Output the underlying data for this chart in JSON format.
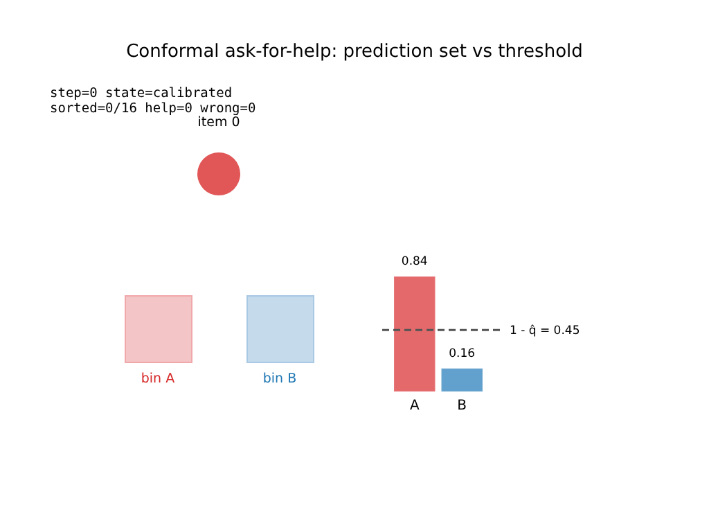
{
  "chart_data": {
    "type": "bar",
    "title": "Conformal ask-for-help: prediction set vs threshold",
    "categories": [
      "A",
      "B"
    ],
    "values": [
      0.84,
      0.16
    ],
    "colors": [
      "#e3696b",
      "#62a0cd"
    ],
    "data_labels": true,
    "ref_lines": [
      {
        "axis": "y",
        "value": 0.45,
        "label": "1 - q̂ = 0.45",
        "color": "#555555",
        "line_style": "dashed"
      }
    ],
    "annotations": [
      "step=0  state=calibrated",
      "sorted=0/16  help=0  wrong=0",
      "item 0",
      "bin A",
      "bin B"
    ]
  }
}
